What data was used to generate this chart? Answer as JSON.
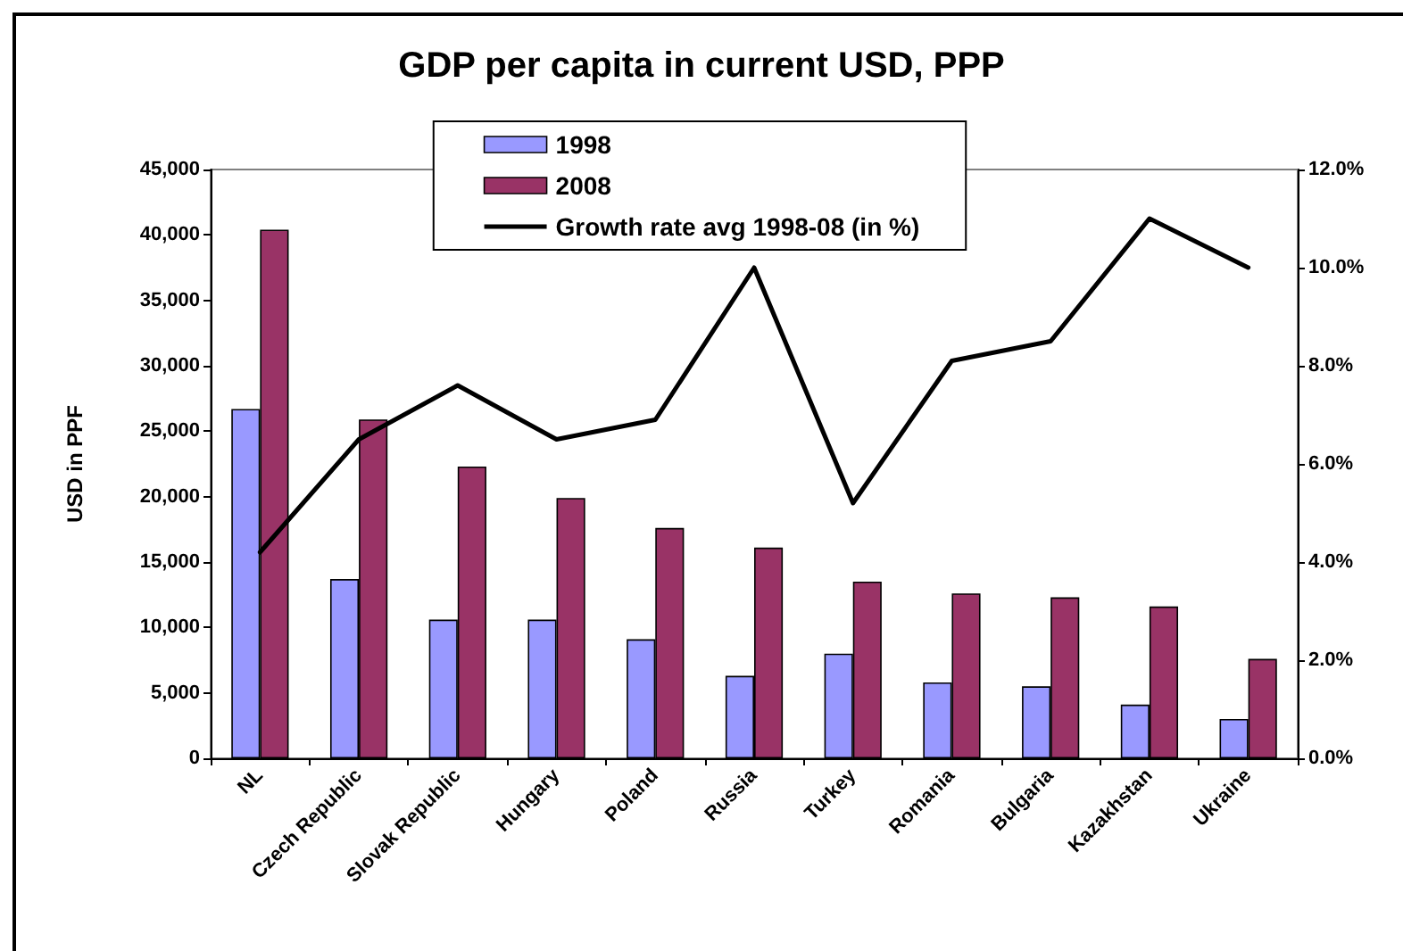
{
  "chart_data": {
    "type": "bar",
    "title": "GDP per capita in current USD, PPP",
    "ylabel": "USD in PPF",
    "categories": [
      "NL",
      "Czech Republic",
      "Slovak Republic",
      "Hungary",
      "Poland",
      "Russia",
      "Turkey",
      "Romania",
      "Bulgaria",
      "Kazakhstan",
      "Ukraine"
    ],
    "series": [
      {
        "name": "1998",
        "color": "#9999ff",
        "values": [
          26700,
          13700,
          10600,
          10600,
          9100,
          6300,
          8000,
          5800,
          5500,
          4100,
          3000
        ]
      },
      {
        "name": "2008",
        "color": "#993366",
        "values": [
          40400,
          25900,
          22300,
          19900,
          17600,
          16100,
          13500,
          12600,
          12300,
          11600,
          7600
        ]
      },
      {
        "name": "Growth rate avg 1998-08 (in %)",
        "type": "line",
        "axis": "y2",
        "color": "#000000",
        "values": [
          4.2,
          6.5,
          7.6,
          6.5,
          6.9,
          10.0,
          5.2,
          8.1,
          8.5,
          11.0,
          10.0
        ]
      }
    ],
    "ylim": [
      0,
      45000
    ],
    "yticks": [
      0,
      {
        "value": 5000,
        "label": "5,000"
      },
      {
        "value": 10000,
        "label": "10,000"
      },
      {
        "value": 15000,
        "label": "15,000"
      },
      {
        "value": 20000,
        "label": "20,000"
      },
      {
        "value": 25000,
        "label": "25,000"
      },
      {
        "value": 30000,
        "label": "30,000"
      },
      {
        "value": 35000,
        "label": "35,000"
      },
      {
        "value": 40000,
        "label": "40,000"
      },
      {
        "value": 45000,
        "label": "45,000"
      }
    ],
    "y2lim": [
      0,
      12
    ],
    "y2ticks": [
      {
        "value": 0,
        "label": "0.0%"
      },
      {
        "value": 2,
        "label": "2.0%"
      },
      {
        "value": 4,
        "label": "4.0%"
      },
      {
        "value": 6,
        "label": "6.0%"
      },
      {
        "value": 8,
        "label": "8.0%"
      },
      {
        "value": 10,
        "label": "10.0%"
      },
      {
        "value": 12,
        "label": "12.0%"
      }
    ],
    "grid": false,
    "legend": "top",
    "marker": "none",
    "line_style": "solid"
  }
}
